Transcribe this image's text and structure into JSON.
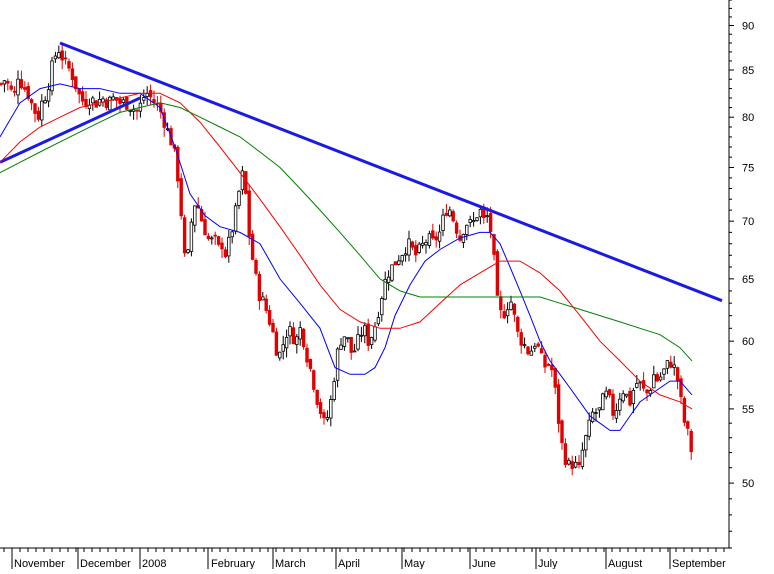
{
  "chart_data": {
    "type": "candlestick",
    "title": "",
    "xlabel": "",
    "ylabel": "",
    "scale": "log",
    "ylim": [
      46,
      93
    ],
    "yticks": [
      50,
      55,
      60,
      65,
      70,
      75,
      80,
      85,
      90
    ],
    "month_labels": [
      "November",
      "December",
      "2008",
      "February",
      "March",
      "April",
      "May",
      "June",
      "July",
      "August",
      "September"
    ],
    "colors": {
      "up_candle": "#000000",
      "down_candle": "#e00000",
      "trendline": "#1a1ae6",
      "ma_short": "#0000ff",
      "ma_medium": "#ff0000",
      "ma_long": "#008000"
    },
    "grid": false,
    "legend": "none",
    "price_path": [
      [
        1,
        83.5
      ],
      [
        5,
        84.0
      ],
      [
        10,
        83.0
      ],
      [
        14,
        82.0
      ],
      [
        18,
        84.5
      ],
      [
        22,
        83.5
      ],
      [
        28,
        82.5
      ],
      [
        33,
        81.0
      ],
      [
        38,
        80.0
      ],
      [
        43,
        82.0
      ],
      [
        47,
        82.5
      ],
      [
        50,
        84.5
      ],
      [
        55,
        86.5
      ],
      [
        58,
        87.5
      ],
      [
        62,
        86.5
      ],
      [
        66,
        85.5
      ],
      [
        70,
        85.0
      ],
      [
        74,
        84.0
      ],
      [
        78,
        82.5
      ],
      [
        84,
        81.5
      ],
      [
        90,
        82.0
      ],
      [
        96,
        81.5
      ],
      [
        102,
        82.0
      ],
      [
        108,
        81.5
      ],
      [
        114,
        82.0
      ],
      [
        120,
        81.5
      ],
      [
        126,
        81.5
      ],
      [
        132,
        81.0
      ],
      [
        138,
        80.5
      ],
      [
        143,
        82.0
      ],
      [
        147,
        82.5
      ],
      [
        151,
        82.0
      ],
      [
        155,
        81.5
      ],
      [
        159,
        81.0
      ],
      [
        163,
        80.0
      ],
      [
        166,
        79.0
      ],
      [
        170,
        78.0
      ],
      [
        174,
        76.5
      ],
      [
        178,
        74.0
      ],
      [
        181,
        71.0
      ],
      [
        184,
        67.0
      ],
      [
        187,
        66.0
      ],
      [
        190,
        69.0
      ],
      [
        193,
        71.0
      ],
      [
        196,
        72.0
      ],
      [
        199,
        71.0
      ],
      [
        202,
        70.0
      ],
      [
        206,
        69.0
      ],
      [
        210,
        68.0
      ],
      [
        214,
        68.5
      ],
      [
        218,
        67.5
      ],
      [
        222,
        68.0
      ],
      [
        226,
        67.0
      ],
      [
        230,
        68.5
      ],
      [
        234,
        70.0
      ],
      [
        238,
        72.0
      ],
      [
        241,
        74.0
      ],
      [
        244,
        74.5
      ],
      [
        247,
        71.0
      ],
      [
        250,
        68.0
      ],
      [
        253,
        66.5
      ],
      [
        256,
        65.0
      ],
      [
        260,
        63.5
      ],
      [
        264,
        63.0
      ],
      [
        268,
        62.0
      ],
      [
        272,
        61.0
      ],
      [
        276,
        59.5
      ],
      [
        280,
        59.0
      ],
      [
        284,
        60.0
      ],
      [
        288,
        61.0
      ],
      [
        292,
        60.5
      ],
      [
        296,
        60.0
      ],
      [
        300,
        61.0
      ],
      [
        304,
        60.0
      ],
      [
        308,
        58.5
      ],
      [
        312,
        57.5
      ],
      [
        316,
        56.0
      ],
      [
        320,
        55.0
      ],
      [
        324,
        54.0
      ],
      [
        328,
        54.5
      ],
      [
        332,
        56.0
      ],
      [
        336,
        58.5
      ],
      [
        340,
        60.0
      ],
      [
        344,
        60.5
      ],
      [
        348,
        60.0
      ],
      [
        352,
        59.0
      ],
      [
        356,
        59.5
      ],
      [
        360,
        60.5
      ],
      [
        364,
        61.0
      ],
      [
        368,
        60.0
      ],
      [
        372,
        60.5
      ],
      [
        376,
        61.5
      ],
      [
        380,
        63.0
      ],
      [
        384,
        64.5
      ],
      [
        388,
        65.5
      ],
      [
        392,
        66.0
      ],
      [
        396,
        66.5
      ],
      [
        400,
        67.0
      ],
      [
        404,
        67.5
      ],
      [
        408,
        68.0
      ],
      [
        412,
        67.5
      ],
      [
        416,
        67.0
      ],
      [
        420,
        67.5
      ],
      [
        424,
        68.0
      ],
      [
        428,
        68.5
      ],
      [
        432,
        68.0
      ],
      [
        436,
        68.5
      ],
      [
        440,
        69.0
      ],
      [
        444,
        70.5
      ],
      [
        448,
        71.5
      ],
      [
        452,
        70.5
      ],
      [
        456,
        69.5
      ],
      [
        460,
        68.5
      ],
      [
        464,
        69.5
      ],
      [
        468,
        70.0
      ],
      [
        472,
        69.5
      ],
      [
        476,
        70.5
      ],
      [
        480,
        71.0
      ],
      [
        484,
        70.0
      ],
      [
        488,
        70.5
      ],
      [
        492,
        68.5
      ],
      [
        495,
        65.5
      ],
      [
        498,
        62.5
      ],
      [
        502,
        62.0
      ],
      [
        506,
        62.5
      ],
      [
        510,
        63.5
      ],
      [
        514,
        62.0
      ],
      [
        518,
        60.5
      ],
      [
        522,
        60.0
      ],
      [
        526,
        59.5
      ],
      [
        530,
        59.0
      ],
      [
        534,
        60.0
      ],
      [
        538,
        59.5
      ],
      [
        542,
        58.5
      ],
      [
        546,
        58.0
      ],
      [
        550,
        58.5
      ],
      [
        554,
        57.0
      ],
      [
        558,
        54.5
      ],
      [
        562,
        52.5
      ],
      [
        566,
        51.5
      ],
      [
        570,
        51.0
      ],
      [
        574,
        51.5
      ],
      [
        578,
        50.5
      ],
      [
        582,
        52.0
      ],
      [
        586,
        53.0
      ],
      [
        590,
        54.0
      ],
      [
        594,
        55.0
      ],
      [
        598,
        54.5
      ],
      [
        602,
        55.5
      ],
      [
        606,
        56.0
      ],
      [
        610,
        55.5
      ],
      [
        614,
        54.5
      ],
      [
        618,
        55.5
      ],
      [
        622,
        56.5
      ],
      [
        626,
        56.0
      ],
      [
        630,
        55.5
      ],
      [
        634,
        56.5
      ],
      [
        638,
        57.0
      ],
      [
        642,
        56.5
      ],
      [
        646,
        56.0
      ],
      [
        650,
        56.5
      ],
      [
        654,
        57.5
      ],
      [
        658,
        57.0
      ],
      [
        662,
        57.5
      ],
      [
        666,
        58.0
      ],
      [
        670,
        58.5
      ],
      [
        674,
        58.0
      ],
      [
        678,
        57.0
      ],
      [
        682,
        55.0
      ],
      [
        686,
        53.5
      ],
      [
        690,
        53.0
      ],
      [
        693,
        51.0
      ]
    ],
    "series": [
      {
        "name": "",
        "role": "trendline",
        "points": [
          [
            60,
            88.0
          ],
          [
            722,
            63.2
          ]
        ]
      },
      {
        "name": "",
        "role": "trendline",
        "points": [
          [
            0,
            75.5
          ],
          [
            140,
            82.0
          ]
        ]
      },
      {
        "name": "",
        "role": "ma_short",
        "points": [
          [
            0,
            78.0
          ],
          [
            20,
            81.5
          ],
          [
            40,
            83.0
          ],
          [
            60,
            83.5
          ],
          [
            80,
            83.0
          ],
          [
            100,
            83.0
          ],
          [
            120,
            82.5
          ],
          [
            140,
            82.5
          ],
          [
            160,
            81.0
          ],
          [
            175,
            77.0
          ],
          [
            190,
            72.5
          ],
          [
            205,
            70.5
          ],
          [
            220,
            69.5
          ],
          [
            240,
            69.0
          ],
          [
            260,
            68.0
          ],
          [
            280,
            65.0
          ],
          [
            300,
            63.0
          ],
          [
            320,
            61.0
          ],
          [
            335,
            58.0
          ],
          [
            350,
            57.5
          ],
          [
            365,
            57.5
          ],
          [
            375,
            58.0
          ],
          [
            385,
            59.5
          ],
          [
            395,
            62.0
          ],
          [
            410,
            64.5
          ],
          [
            425,
            66.5
          ],
          [
            440,
            67.5
          ],
          [
            460,
            68.5
          ],
          [
            480,
            69.0
          ],
          [
            490,
            69.0
          ],
          [
            500,
            68.0
          ],
          [
            510,
            66.0
          ],
          [
            520,
            64.0
          ],
          [
            530,
            62.0
          ],
          [
            540,
            60.0
          ],
          [
            550,
            58.5
          ],
          [
            560,
            57.5
          ],
          [
            570,
            56.5
          ],
          [
            580,
            55.5
          ],
          [
            590,
            54.5
          ],
          [
            600,
            54.0
          ],
          [
            610,
            53.5
          ],
          [
            620,
            53.5
          ],
          [
            630,
            54.5
          ],
          [
            640,
            55.5
          ],
          [
            650,
            56.0
          ],
          [
            660,
            56.5
          ],
          [
            670,
            57.0
          ],
          [
            680,
            57.0
          ],
          [
            692,
            56.0
          ]
        ]
      },
      {
        "name": "",
        "role": "ma_medium",
        "points": [
          [
            0,
            75.5
          ],
          [
            20,
            77.5
          ],
          [
            40,
            79.0
          ],
          [
            60,
            80.0
          ],
          [
            80,
            81.0
          ],
          [
            100,
            81.5
          ],
          [
            120,
            82.0
          ],
          [
            140,
            82.5
          ],
          [
            160,
            82.5
          ],
          [
            180,
            81.5
          ],
          [
            200,
            79.5
          ],
          [
            220,
            77.0
          ],
          [
            240,
            74.5
          ],
          [
            260,
            72.0
          ],
          [
            280,
            69.5
          ],
          [
            300,
            67.0
          ],
          [
            320,
            64.5
          ],
          [
            340,
            62.5
          ],
          [
            360,
            61.5
          ],
          [
            380,
            61.0
          ],
          [
            400,
            61.0
          ],
          [
            420,
            61.5
          ],
          [
            440,
            63.0
          ],
          [
            460,
            64.5
          ],
          [
            480,
            65.5
          ],
          [
            500,
            66.5
          ],
          [
            520,
            66.5
          ],
          [
            540,
            65.5
          ],
          [
            560,
            64.0
          ],
          [
            580,
            62.0
          ],
          [
            600,
            60.0
          ],
          [
            620,
            58.5
          ],
          [
            640,
            57.0
          ],
          [
            660,
            56.0
          ],
          [
            680,
            55.5
          ],
          [
            692,
            55.0
          ]
        ]
      },
      {
        "name": "",
        "role": "ma_long",
        "points": [
          [
            0,
            74.5
          ],
          [
            20,
            75.5
          ],
          [
            40,
            76.5
          ],
          [
            60,
            77.5
          ],
          [
            80,
            78.5
          ],
          [
            100,
            79.5
          ],
          [
            120,
            80.5
          ],
          [
            140,
            81.0
          ],
          [
            160,
            81.5
          ],
          [
            180,
            81.0
          ],
          [
            200,
            80.0
          ],
          [
            220,
            79.0
          ],
          [
            240,
            78.0
          ],
          [
            260,
            76.5
          ],
          [
            280,
            75.0
          ],
          [
            300,
            73.0
          ],
          [
            320,
            71.0
          ],
          [
            340,
            69.0
          ],
          [
            360,
            67.0
          ],
          [
            380,
            65.0
          ],
          [
            400,
            64.0
          ],
          [
            420,
            63.5
          ],
          [
            440,
            63.5
          ],
          [
            460,
            63.5
          ],
          [
            480,
            63.5
          ],
          [
            500,
            63.5
          ],
          [
            520,
            63.5
          ],
          [
            540,
            63.5
          ],
          [
            560,
            63.0
          ],
          [
            580,
            62.5
          ],
          [
            600,
            62.0
          ],
          [
            620,
            61.5
          ],
          [
            640,
            61.0
          ],
          [
            660,
            60.5
          ],
          [
            680,
            59.5
          ],
          [
            692,
            58.5
          ]
        ]
      }
    ]
  }
}
